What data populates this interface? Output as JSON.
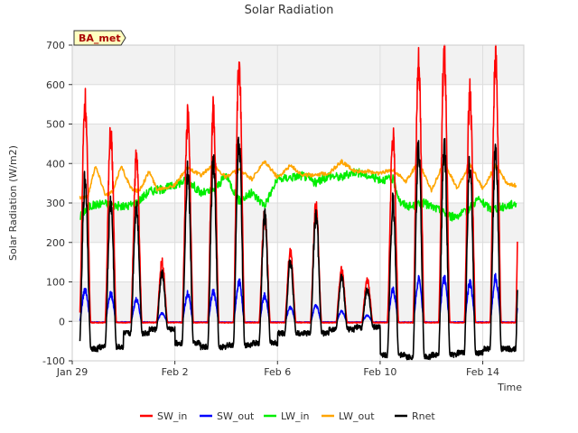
{
  "chart_data": {
    "type": "line",
    "title": "Solar Radiation",
    "xlabel": "Time",
    "ylabel": "Solar Radiation (W/m2)",
    "ylim": [
      -100,
      700
    ],
    "xlim": [
      0,
      17.6
    ],
    "yticks": [
      -100,
      0,
      100,
      200,
      300,
      400,
      500,
      600,
      700
    ],
    "xticks": [
      {
        "label": "Jan 29",
        "day": 0
      },
      {
        "label": "Feb 2",
        "day": 4
      },
      {
        "label": "Feb 6",
        "day": 8
      },
      {
        "label": "Feb 10",
        "day": 12
      },
      {
        "label": "Feb 14",
        "day": 16
      }
    ],
    "grid": true,
    "badge": "BA_met",
    "legend_position": "bottom",
    "x_unit": "days since Jan 29",
    "series": [
      {
        "name": "SW_in",
        "color": "#ff0000",
        "daily_peaks": [
          560,
          475,
          415,
          150,
          515,
          530,
          665,
          270,
          175,
          290,
          130,
          105,
          470,
          660,
          680,
          580,
          670
        ],
        "peak_hour_offset": 0.5,
        "baseline": -3
      },
      {
        "name": "SW_out",
        "color": "#0000ff",
        "daily_peaks": [
          80,
          70,
          55,
          20,
          70,
          75,
          100,
          65,
          35,
          40,
          25,
          15,
          80,
          105,
          110,
          95,
          110
        ],
        "peak_hour_offset": 0.5,
        "baseline": -2
      },
      {
        "name": "LW_in",
        "color": "#00ee00",
        "points": [
          [
            0.3,
            265
          ],
          [
            0.6,
            290
          ],
          [
            1.2,
            300
          ],
          [
            2,
            290
          ],
          [
            2.5,
            300
          ],
          [
            3,
            330
          ],
          [
            3.5,
            335
          ],
          [
            4,
            345
          ],
          [
            4.5,
            360
          ],
          [
            5,
            325
          ],
          [
            5.5,
            330
          ],
          [
            6,
            370
          ],
          [
            6.5,
            305
          ],
          [
            7,
            325
          ],
          [
            7.5,
            295
          ],
          [
            8,
            360
          ],
          [
            8.5,
            365
          ],
          [
            9,
            370
          ],
          [
            9.5,
            350
          ],
          [
            10,
            370
          ],
          [
            10.5,
            365
          ],
          [
            11,
            380
          ],
          [
            11.5,
            370
          ],
          [
            12,
            360
          ],
          [
            12.5,
            360
          ],
          [
            12.8,
            300
          ],
          [
            13.2,
            290
          ],
          [
            13.7,
            300
          ],
          [
            14.2,
            285
          ],
          [
            14.8,
            265
          ],
          [
            15.3,
            275
          ],
          [
            15.8,
            310
          ],
          [
            16.3,
            285
          ],
          [
            16.8,
            290
          ],
          [
            17.3,
            300
          ]
        ]
      },
      {
        "name": "LW_out",
        "color": "#ffa500",
        "points": [
          [
            0.3,
            315
          ],
          [
            0.6,
            315
          ],
          [
            0.9,
            395
          ],
          [
            1.3,
            320
          ],
          [
            1.6,
            330
          ],
          [
            1.9,
            395
          ],
          [
            2.3,
            335
          ],
          [
            2.6,
            330
          ],
          [
            3,
            380
          ],
          [
            3.3,
            335
          ],
          [
            4,
            345
          ],
          [
            4.5,
            390
          ],
          [
            5,
            370
          ],
          [
            5.5,
            395
          ],
          [
            6,
            365
          ],
          [
            6.5,
            385
          ],
          [
            7,
            360
          ],
          [
            7.5,
            405
          ],
          [
            8,
            365
          ],
          [
            8.5,
            395
          ],
          [
            9,
            370
          ],
          [
            10,
            375
          ],
          [
            10.5,
            405
          ],
          [
            11,
            380
          ],
          [
            11.5,
            380
          ],
          [
            12,
            375
          ],
          [
            12.5,
            385
          ],
          [
            13,
            355
          ],
          [
            13.5,
            405
          ],
          [
            14,
            330
          ],
          [
            14.5,
            405
          ],
          [
            15,
            335
          ],
          [
            15.5,
            400
          ],
          [
            16,
            335
          ],
          [
            16.5,
            395
          ],
          [
            17,
            345
          ],
          [
            17.3,
            345
          ]
        ]
      },
      {
        "name": "Rnet",
        "color": "#000000",
        "daily_peaks": [
          360,
          300,
          290,
          120,
          380,
          410,
          460,
          270,
          150,
          270,
          110,
          80,
          300,
          440,
          440,
          400,
          440
        ],
        "night_values": [
          -70,
          -65,
          -30,
          -20,
          -55,
          -65,
          -60,
          -55,
          -30,
          -30,
          -20,
          -15,
          -85,
          -90,
          -85,
          -80,
          -70
        ],
        "peak_hour_offset": 0.5
      }
    ]
  }
}
